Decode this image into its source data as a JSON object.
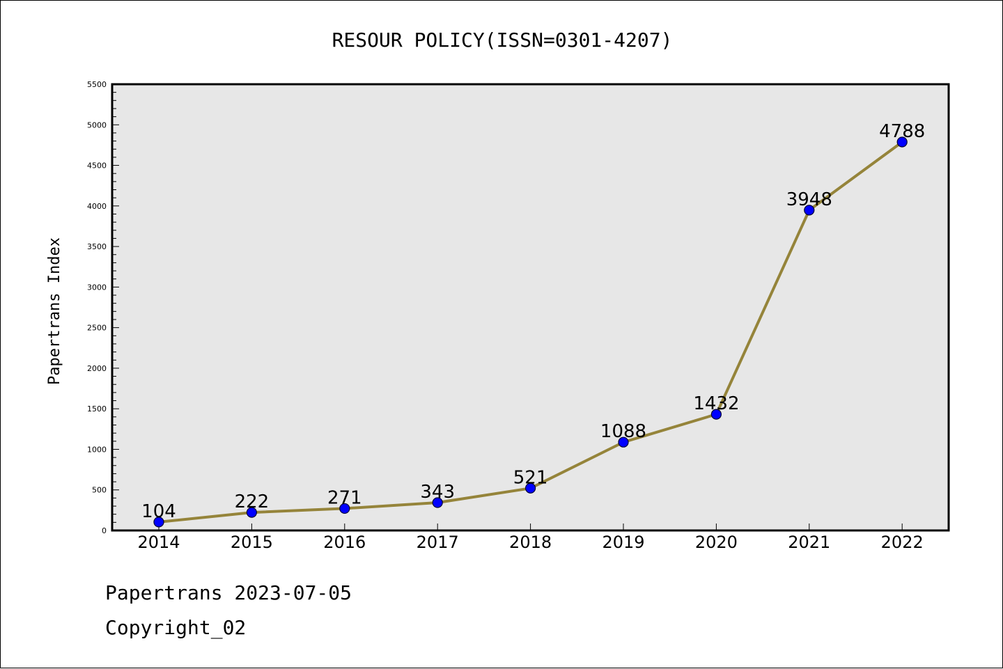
{
  "colors": {
    "plot_background": "#e7e7e7",
    "line": "#95843a",
    "marker": "#0000ff",
    "marker_edge": "#000033"
  },
  "chart_data": {
    "type": "line",
    "title": "RESOUR POLICY(ISSN=0301-4207)",
    "xlabel": "",
    "ylabel": "Papertrans Index",
    "categories": [
      "2014",
      "2015",
      "2016",
      "2017",
      "2018",
      "2019",
      "2020",
      "2021",
      "2022"
    ],
    "series": [
      {
        "values": [
          104,
          222,
          271,
          343,
          521,
          1088,
          1432,
          3948,
          4788
        ]
      }
    ],
    "data_labels": [
      "104",
      "222",
      "271",
      "343",
      "521",
      "1088",
      "1432",
      "3948",
      "4788"
    ],
    "ylim": [
      0,
      5500
    ],
    "yticks": [
      0,
      500,
      1000,
      1500,
      2000,
      2500,
      3000,
      3500,
      4000,
      4500,
      5000,
      5500
    ],
    "ytick_labels": [
      "0",
      "500",
      "1000",
      "1500",
      "2000",
      "2500",
      "3000",
      "3500",
      "4000",
      "4500",
      "5000",
      "5500"
    ],
    "grid": false,
    "legend": "none"
  },
  "footer": {
    "line1": "Papertrans 2023-07-05",
    "line2": "Copyright_02"
  }
}
